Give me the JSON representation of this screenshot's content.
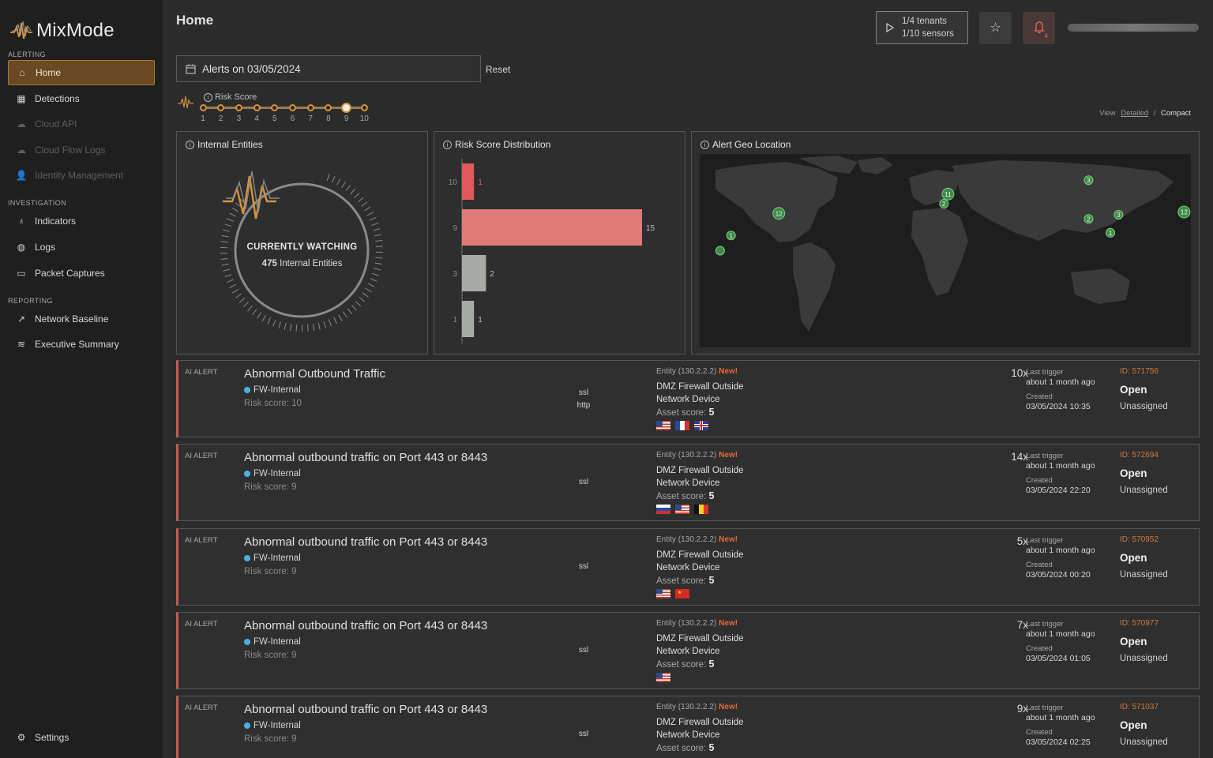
{
  "app": {
    "name": "MixMode"
  },
  "sidebar": {
    "sections": [
      {
        "label": "ALERTING",
        "items": [
          {
            "label": "Home",
            "icon": "home-icon",
            "active": true
          },
          {
            "label": "Detections",
            "icon": "grid-icon"
          },
          {
            "label": "Cloud API",
            "icon": "cloud-icon",
            "disabled": true
          },
          {
            "label": "Cloud Flow Logs",
            "icon": "cloud-icon",
            "disabled": true
          },
          {
            "label": "Identity Management",
            "icon": "user-icon",
            "disabled": true
          }
        ]
      },
      {
        "label": "INVESTIGATION",
        "items": [
          {
            "label": "Indicators",
            "icon": "lightbulb-icon"
          },
          {
            "label": "Logs",
            "icon": "globe-icon"
          },
          {
            "label": "Packet Captures",
            "icon": "archive-icon"
          }
        ]
      },
      {
        "label": "REPORTING",
        "items": [
          {
            "label": "Network Baseline",
            "icon": "trend-icon"
          },
          {
            "label": "Executive Summary",
            "icon": "layers-icon"
          }
        ]
      }
    ],
    "settings_label": "Settings"
  },
  "header": {
    "title": "Home",
    "tenants": "1/4 tenants",
    "sensors": "1/10 sensors",
    "bell_count": "4"
  },
  "filters": {
    "date_label": "Alerts on 03/05/2024",
    "reset_label": "Reset",
    "risk_label": "Risk Score",
    "risk_ticks": [
      "1",
      "2",
      "3",
      "4",
      "5",
      "6",
      "7",
      "8",
      "9",
      "10"
    ],
    "risk_selected": 9,
    "view_label": "View",
    "view_detailed": "Detailed",
    "view_sep": "/",
    "view_compact": "Compact"
  },
  "panels": {
    "entities": {
      "title": "Internal Entities",
      "watching_label": "CURRENTLY WATCHING",
      "count": "475",
      "count_suffix": "Internal Entities"
    },
    "distribution": {
      "title": "Risk Score Distribution"
    },
    "geo": {
      "title": "Alert Geo Location",
      "markers": [
        {
          "label": "12",
          "lon": -122,
          "lat": 37
        },
        {
          "label": "1",
          "lon": -157,
          "lat": 21
        },
        {
          "label": "",
          "lon": -165,
          "lat": 10
        },
        {
          "label": "11",
          "lon": 2,
          "lat": 51
        },
        {
          "label": "2",
          "lon": -1,
          "lat": 44
        },
        {
          "label": "3",
          "lon": 105,
          "lat": 61
        },
        {
          "label": "2",
          "lon": 105,
          "lat": 33
        },
        {
          "label": "3",
          "lon": 127,
          "lat": 36
        },
        {
          "label": "1",
          "lon": 121,
          "lat": 23
        },
        {
          "label": "12",
          "lon": 175,
          "lat": 38
        }
      ]
    }
  },
  "chart_data": {
    "type": "bar",
    "orientation": "horizontal",
    "categories": [
      "10",
      "9",
      "3",
      "1"
    ],
    "values": [
      1,
      15,
      2,
      1
    ],
    "colors": [
      "#e05a5a",
      "#e07a78",
      "#a8aaa6",
      "#a8aaa6"
    ],
    "xlim": [
      0,
      15
    ]
  },
  "alerts": [
    {
      "tag": "AI ALERT",
      "title": "Abnormal Outbound Traffic",
      "group": "FW-Internal",
      "risk": "Risk score: 10",
      "protocols": [
        "ssl",
        "http"
      ],
      "entity": "Entity (130.2.2.2)",
      "new": "New!",
      "device": "DMZ Firewall Outside",
      "device_type": "Network Device",
      "asset_label": "Asset score:",
      "asset_score": "5",
      "flags": [
        "us",
        "fr",
        "gb"
      ],
      "count": "10x",
      "trigger_label": "Last trigger",
      "trigger": "about 1 month ago",
      "created_label": "Created",
      "created": "03/05/2024 10:35",
      "id": "ID: 571756",
      "status": "Open",
      "assignee": "Unassigned"
    },
    {
      "tag": "AI ALERT",
      "title": "Abnormal outbound traffic on Port 443 or 8443",
      "group": "FW-Internal",
      "risk": "Risk score: 9",
      "protocols": [
        "ssl"
      ],
      "entity": "Entity (130.2.2.2)",
      "new": "New!",
      "device": "DMZ Firewall Outside",
      "device_type": "Network Device",
      "asset_label": "Asset score:",
      "asset_score": "5",
      "flags": [
        "ru",
        "us",
        "be"
      ],
      "count": "14x",
      "trigger_label": "Last trigger",
      "trigger": "about 1 month ago",
      "created_label": "Created",
      "created": "03/05/2024 22:20",
      "id": "ID: 572694",
      "status": "Open",
      "assignee": "Unassigned"
    },
    {
      "tag": "AI ALERT",
      "title": "Abnormal outbound traffic on Port 443 or 8443",
      "group": "FW-Internal",
      "risk": "Risk score: 9",
      "protocols": [
        "ssl"
      ],
      "entity": "Entity (130.2.2.2)",
      "new": "New!",
      "device": "DMZ Firewall Outside",
      "device_type": "Network Device",
      "asset_label": "Asset score:",
      "asset_score": "5",
      "flags": [
        "us",
        "cn"
      ],
      "count": "5x",
      "trigger_label": "Last trigger",
      "trigger": "about 1 month ago",
      "created_label": "Created",
      "created": "03/05/2024 00:20",
      "id": "ID: 570952",
      "status": "Open",
      "assignee": "Unassigned"
    },
    {
      "tag": "AI ALERT",
      "title": "Abnormal outbound traffic on Port 443 or 8443",
      "group": "FW-Internal",
      "risk": "Risk score: 9",
      "protocols": [
        "ssl"
      ],
      "entity": "Entity (130.2.2.2)",
      "new": "New!",
      "device": "DMZ Firewall Outside",
      "device_type": "Network Device",
      "asset_label": "Asset score:",
      "asset_score": "5",
      "flags": [
        "us"
      ],
      "count": "7x",
      "trigger_label": "Last trigger",
      "trigger": "about 1 month ago",
      "created_label": "Created",
      "created": "03/05/2024 01:05",
      "id": "ID: 570977",
      "status": "Open",
      "assignee": "Unassigned"
    },
    {
      "tag": "AI ALERT",
      "title": "Abnormal outbound traffic on Port 443 or 8443",
      "group": "FW-Internal",
      "risk": "Risk score: 9",
      "protocols": [
        "ssl"
      ],
      "entity": "Entity (130.2.2.2)",
      "new": "New!",
      "device": "DMZ Firewall Outside",
      "device_type": "Network Device",
      "asset_label": "Asset score:",
      "asset_score": "5",
      "flags": [],
      "count": "9x",
      "trigger_label": "Last trigger",
      "trigger": "about 1 month ago",
      "created_label": "Created",
      "created": "03/05/2024 02:25",
      "id": "ID: 571037",
      "status": "Open",
      "assignee": "Unassigned"
    }
  ]
}
